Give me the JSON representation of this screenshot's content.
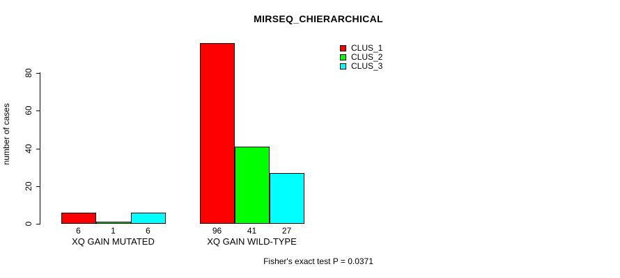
{
  "chart_data": {
    "type": "bar",
    "title": "MIRSEQ_CHIERARCHICAL",
    "ylabel": "number of cases",
    "xlabel": "",
    "categories": [
      "XQ GAIN MUTATED",
      "XQ GAIN WILD-TYPE"
    ],
    "series": [
      {
        "name": "CLUS_1",
        "color": "#ff0000",
        "values": [
          6,
          96
        ]
      },
      {
        "name": "CLUS_2",
        "color": "#00ff00",
        "values": [
          1,
          41
        ]
      },
      {
        "name": "CLUS_3",
        "color": "#00ffff",
        "values": [
          6,
          27
        ]
      }
    ],
    "bar_value_labels": [
      [
        6,
        1,
        6
      ],
      [
        96,
        41,
        27
      ]
    ],
    "yticks": [
      0,
      20,
      40,
      60,
      80
    ],
    "ylim": [
      0,
      96
    ],
    "grid": false,
    "legend_position": "top-right",
    "annotation": "Fisher's exact test P = 0.0371"
  }
}
